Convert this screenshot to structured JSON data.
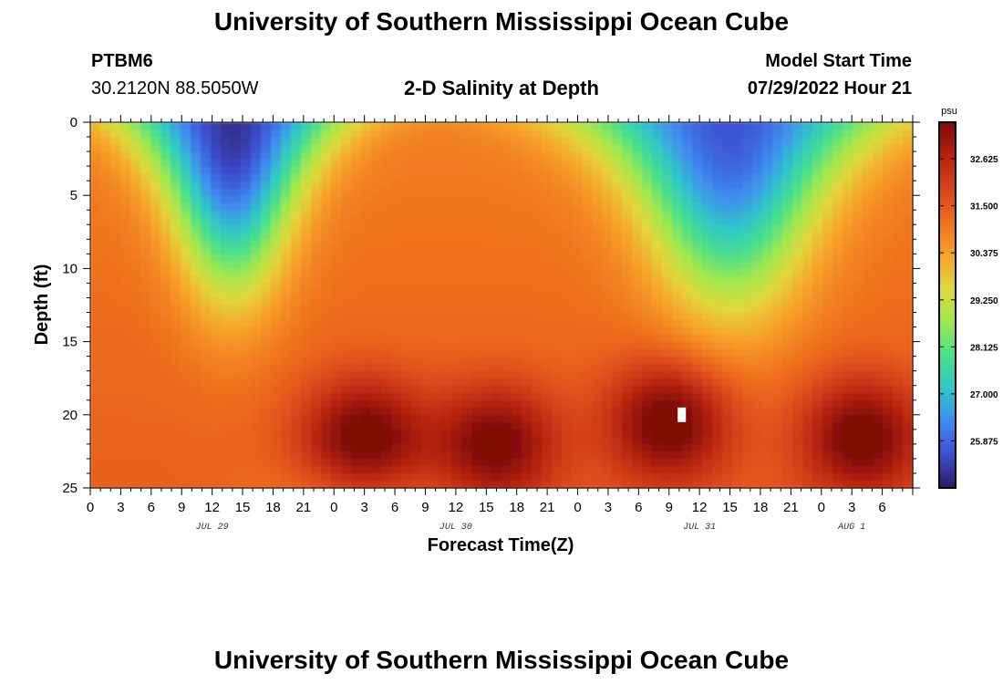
{
  "header": {
    "title": "University of Southern Mississippi Ocean Cube",
    "station": "PTBM6",
    "coords": "30.2120N  88.5050W",
    "subtitle": "2-D Salinity at Depth",
    "model_start_label": "Model Start Time",
    "model_start_value": "07/29/2022 Hour 21"
  },
  "footer": {
    "title": "University of Southern Mississippi Ocean Cube"
  },
  "colors": {
    "scale": [
      "#2b1a5e",
      "#3c4fd0",
      "#3f8cf0",
      "#2fc7c8",
      "#49e08a",
      "#9ee84f",
      "#e1d83a",
      "#f7a22a",
      "#ef6f1d",
      "#d8431a",
      "#b3230f",
      "#7f0a06"
    ]
  },
  "chart_data": {
    "type": "heatmap",
    "title": "2-D Salinity at Depth",
    "xlabel": "Forecast Time(Z)",
    "ylabel": "Depth (ft)",
    "x_range_hours": [
      0,
      81
    ],
    "y_range_ft": [
      0,
      25
    ],
    "y_ticks": [
      "0",
      "5",
      "10",
      "15",
      "20",
      "25"
    ],
    "x_tick_labels": [
      "0",
      "3",
      "6",
      "9",
      "12",
      "15",
      "18",
      "21",
      "0",
      "3",
      "6",
      "9",
      "12",
      "15",
      "18",
      "21",
      "0",
      "3",
      "6",
      "9",
      "12",
      "15",
      "18",
      "21",
      "0",
      "3",
      "6"
    ],
    "day_labels": [
      {
        "label": "JUL 29",
        "hour": 12
      },
      {
        "label": "JUL 30",
        "hour": 36
      },
      {
        "label": "JUL 31",
        "hour": 60
      },
      {
        "label": "AUG 1",
        "hour": 75
      }
    ],
    "colorbar": {
      "unit": "psu",
      "min": 24.75,
      "max": 33.5,
      "labels": [
        "32.625",
        "31.500",
        "30.375",
        "29.250",
        "28.125",
        "27.000",
        "25.875"
      ]
    },
    "model": {
      "baseline_psu": 30.9,
      "freshwater_plumes": [
        {
          "center_hour": 14,
          "half_width_hours": 9,
          "surface_psu": 25.1,
          "plunge_depth_ft": 11
        },
        {
          "center_hour": 63,
          "half_width_hours": 13,
          "surface_psu": 25.6,
          "plunge_depth_ft": 12
        }
      ],
      "deep_salty_cores": [
        {
          "hour": 27,
          "depth_ft": 21.5,
          "psu": 33.3
        },
        {
          "hour": 40,
          "depth_ft": 22,
          "psu": 33.2
        },
        {
          "hour": 57,
          "depth_ft": 20.5,
          "psu": 33.4
        },
        {
          "hour": 76,
          "depth_ft": 21.5,
          "psu": 33.3
        }
      ]
    },
    "marker": {
      "hour": 58.3,
      "depth_ft": 20
    }
  }
}
